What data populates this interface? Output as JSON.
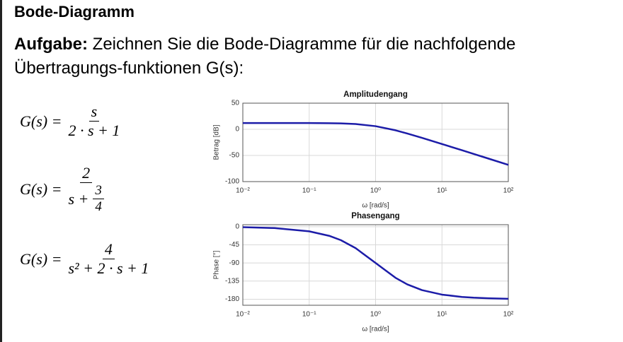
{
  "header": {
    "title": "Bode-Diagramm"
  },
  "task": {
    "label": "Aufgabe:",
    "text": "Zeichnen Sie die Bode-Diagramme für die nachfolgende Übertragungs-funktionen G(s):"
  },
  "formulas": [
    {
      "lhs": "G(s) =",
      "num": "s",
      "den": "2 · s + 1"
    },
    {
      "lhs": "G(s) =",
      "num": "2",
      "den_pre": "s +",
      "den_num": "3",
      "den_den": "4"
    },
    {
      "lhs": "G(s) =",
      "num": "4",
      "den": "s² + 2 · s + 1"
    }
  ],
  "chart_data": [
    {
      "type": "line",
      "title": "Amplitudengang",
      "x_label": "ω [rad/s]",
      "y_label": "Betrag [dB]",
      "x_scale": "log",
      "grid": true,
      "x": [
        0.01,
        0.03,
        0.1,
        0.2,
        0.3,
        0.5,
        1,
        2,
        3,
        5,
        10,
        20,
        30,
        50,
        100
      ],
      "series": [
        {
          "color": "#1c1ca8",
          "values": [
            12.0,
            12.0,
            12.0,
            11.7,
            11.3,
            10.1,
            6.0,
            -1.9,
            -8.0,
            -16.3,
            -28.1,
            -40.0,
            -47.1,
            -55.9,
            -68.0
          ]
        }
      ],
      "xlim": [
        0.01,
        100
      ],
      "xticks": [
        {
          "value": 0.01,
          "label": "10⁻²"
        },
        {
          "value": 0.1,
          "label": "10⁻¹"
        },
        {
          "value": 1,
          "label": "10⁰"
        },
        {
          "value": 10,
          "label": "10¹"
        },
        {
          "value": 100,
          "label": "10²"
        }
      ],
      "ylim": [
        -100,
        50
      ],
      "yticks": [
        50,
        0,
        -50,
        -100
      ]
    },
    {
      "type": "line",
      "title": "Phasengang",
      "x_label": "ω [rad/s]",
      "y_label": "Phase [°]",
      "x_scale": "log",
      "grid": true,
      "x": [
        0.01,
        0.03,
        0.1,
        0.2,
        0.3,
        0.5,
        1,
        2,
        3,
        5,
        10,
        20,
        30,
        50,
        100
      ],
      "series": [
        {
          "color": "#1c1ca8",
          "values": [
            -1.1,
            -3.4,
            -11.4,
            -22.6,
            -33.4,
            -53.1,
            -90.0,
            -126.9,
            -143.1,
            -157.4,
            -168.6,
            -174.3,
            -176.2,
            -177.7,
            -178.9
          ]
        }
      ],
      "xlim": [
        0.01,
        100
      ],
      "xticks": [
        {
          "value": 0.01,
          "label": "10⁻²"
        },
        {
          "value": 0.1,
          "label": "10⁻¹"
        },
        {
          "value": 1,
          "label": "10⁰"
        },
        {
          "value": 10,
          "label": "10¹"
        },
        {
          "value": 100,
          "label": "10²"
        }
      ],
      "ylim": [
        -195,
        5
      ],
      "yticks": [
        0,
        -45,
        -90,
        -135,
        -180
      ]
    }
  ]
}
